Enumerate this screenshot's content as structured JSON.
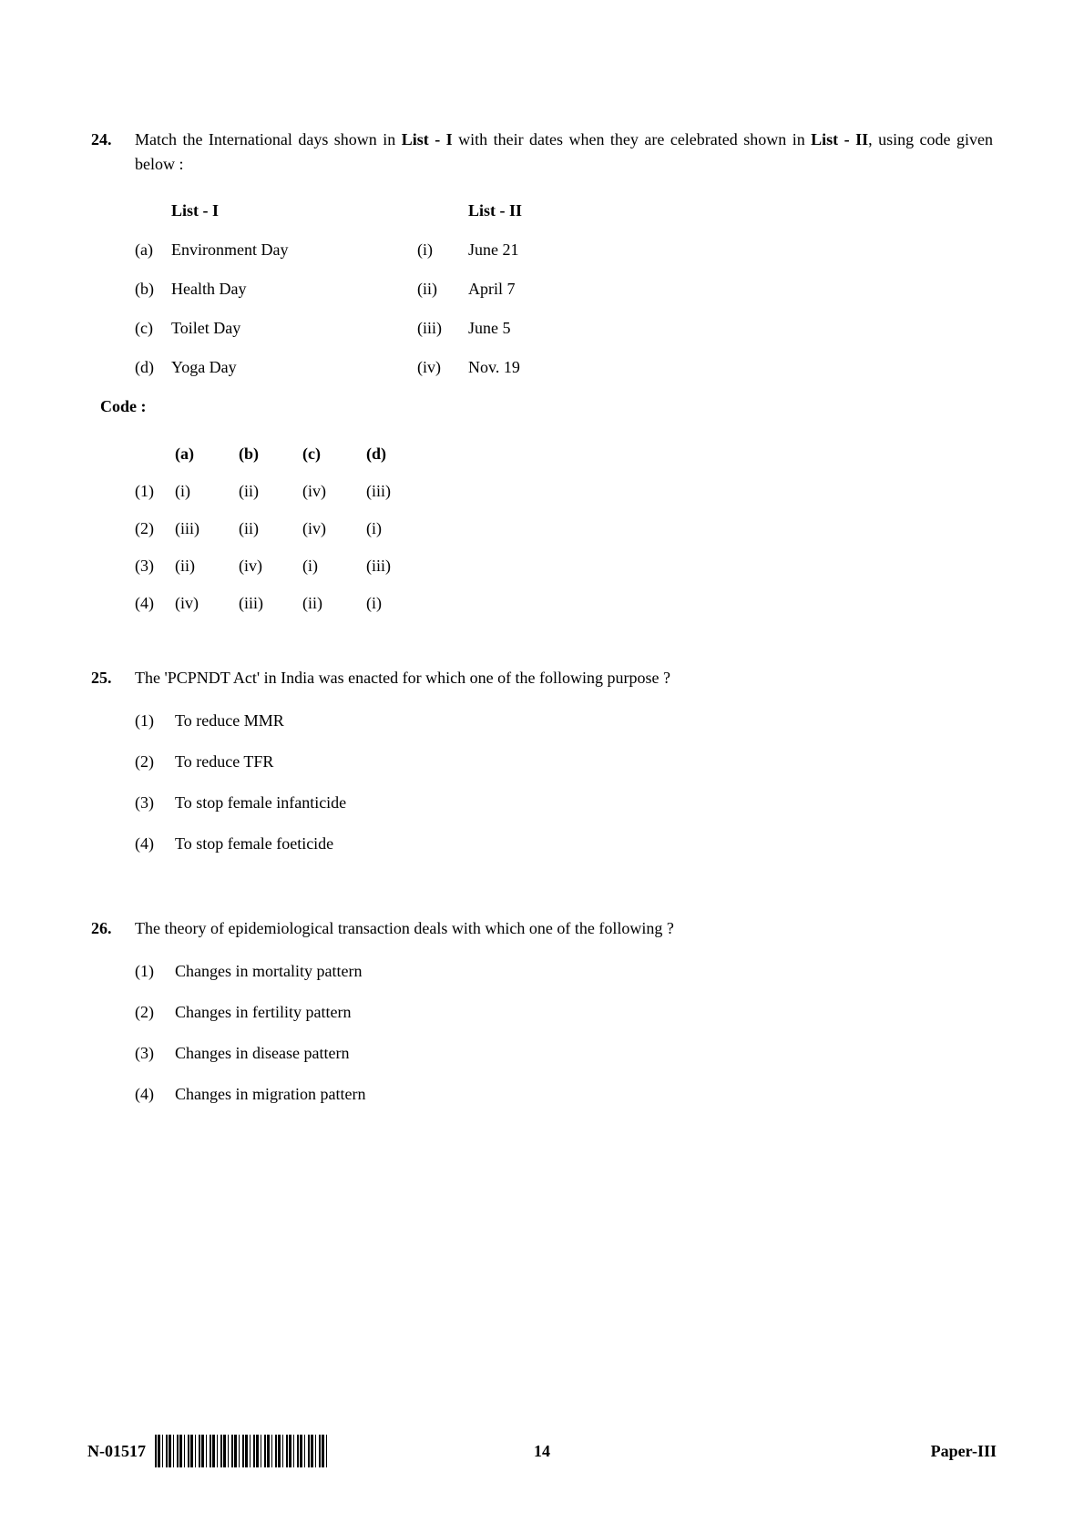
{
  "q24": {
    "num": "24.",
    "text_pre": "Match the International days shown in ",
    "text_l1": "List - I",
    "text_mid": " with their dates when they are celebrated shown in ",
    "text_l2": "List - II",
    "text_post": ", using code given below :",
    "list1_head": "List - I",
    "list2_head": "List - II",
    "rows": {
      "r0": {
        "k1": "(a)",
        "v1": "Environment Day",
        "k2": "(i)",
        "v2": "June 21"
      },
      "r1": {
        "k1": "(b)",
        "v1": "Health Day",
        "k2": "(ii)",
        "v2": "April 7"
      },
      "r2": {
        "k1": "(c)",
        "v1": "Toilet Day",
        "k2": "(iii)",
        "v2": "June 5"
      },
      "r3": {
        "k1": "(d)",
        "v1": "Yoga Day",
        "k2": "(iv)",
        "v2": "Nov. 19"
      }
    },
    "code_label": "Code :",
    "code_head": {
      "a": "(a)",
      "b": "(b)",
      "c": "(c)",
      "d": "(d)"
    },
    "code": {
      "o1": {
        "n": "(1)",
        "a": "(i)",
        "b": "(ii)",
        "c": "(iv)",
        "d": "(iii)"
      },
      "o2": {
        "n": "(2)",
        "a": "(iii)",
        "b": "(ii)",
        "c": "(iv)",
        "d": "(i)"
      },
      "o3": {
        "n": "(3)",
        "a": "(ii)",
        "b": "(iv)",
        "c": "(i)",
        "d": "(iii)"
      },
      "o4": {
        "n": "(4)",
        "a": "(iv)",
        "b": "(iii)",
        "c": "(ii)",
        "d": "(i)"
      }
    }
  },
  "q25": {
    "num": "25.",
    "text": "The 'PCPNDT Act' in India was enacted for which one of the following purpose ?",
    "opts": {
      "o1": {
        "n": "(1)",
        "t": "To reduce MMR"
      },
      "o2": {
        "n": "(2)",
        "t": "To reduce TFR"
      },
      "o3": {
        "n": "(3)",
        "t": "To stop female infanticide"
      },
      "o4": {
        "n": "(4)",
        "t": "To stop female foeticide"
      }
    }
  },
  "q26": {
    "num": "26.",
    "text": "The theory of epidemiological transaction deals with which one of the following ?",
    "opts": {
      "o1": {
        "n": "(1)",
        "t": "Changes in mortality pattern"
      },
      "o2": {
        "n": "(2)",
        "t": "Changes in fertility pattern"
      },
      "o3": {
        "n": "(3)",
        "t": "Changes in disease pattern"
      },
      "o4": {
        "n": "(4)",
        "t": "Changes in migration pattern"
      }
    }
  },
  "footer": {
    "paper_code": "N-01517",
    "page_number": "14",
    "paper_label": "Paper-III"
  }
}
